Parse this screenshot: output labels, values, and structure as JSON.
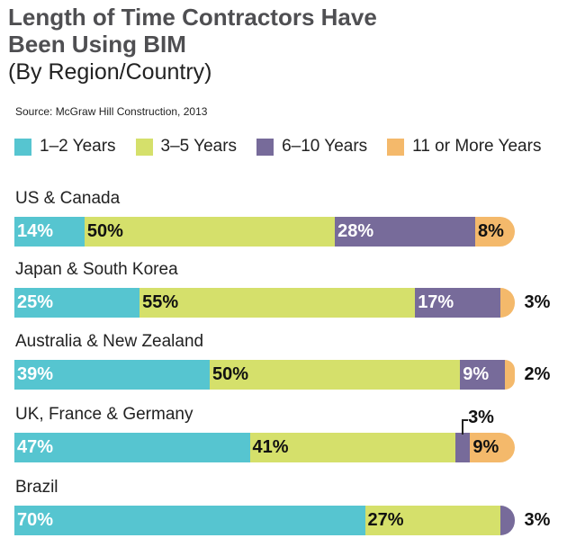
{
  "title_line1": "Length of Time Contractors Have",
  "title_line2": "Been Using BIM",
  "subtitle": "(By Region/Country)",
  "source": "Source: McGraw Hill Construction, 2013",
  "chart_data": {
    "type": "bar",
    "orientation": "horizontal-stacked",
    "legend": [
      "1–2 Years",
      "3–5 Years",
      "6–10 Years",
      "11 or More Years"
    ],
    "colors": [
      "#56c5d0",
      "#d5e06b",
      "#776b9a",
      "#f4b96b"
    ],
    "label_colors": [
      "#ffffff",
      "#111111",
      "#ffffff",
      "#111111"
    ],
    "categories": [
      "US & Canada",
      "Japan & South Korea",
      "Australia & New Zealand",
      "UK, France & Germany",
      "Brazil"
    ],
    "series": [
      {
        "name": "1–2 Years",
        "values": [
          14,
          25,
          39,
          47,
          70
        ]
      },
      {
        "name": "3–5 Years",
        "values": [
          50,
          55,
          50,
          41,
          27
        ]
      },
      {
        "name": "6–10 Years",
        "values": [
          28,
          17,
          9,
          3,
          3
        ]
      },
      {
        "name": "11 or More Years",
        "values": [
          8,
          3,
          2,
          9,
          0
        ]
      }
    ],
    "label_placement": [
      [
        "inside",
        "inside",
        "inside",
        "inside"
      ],
      [
        "inside",
        "inside",
        "inside",
        "outside"
      ],
      [
        "inside",
        "inside",
        "inside",
        "outside"
      ],
      [
        "inside",
        "inside",
        "above",
        "inside"
      ],
      [
        "inside",
        "inside",
        "outside",
        "none"
      ]
    ],
    "xlim": [
      0,
      100
    ]
  }
}
